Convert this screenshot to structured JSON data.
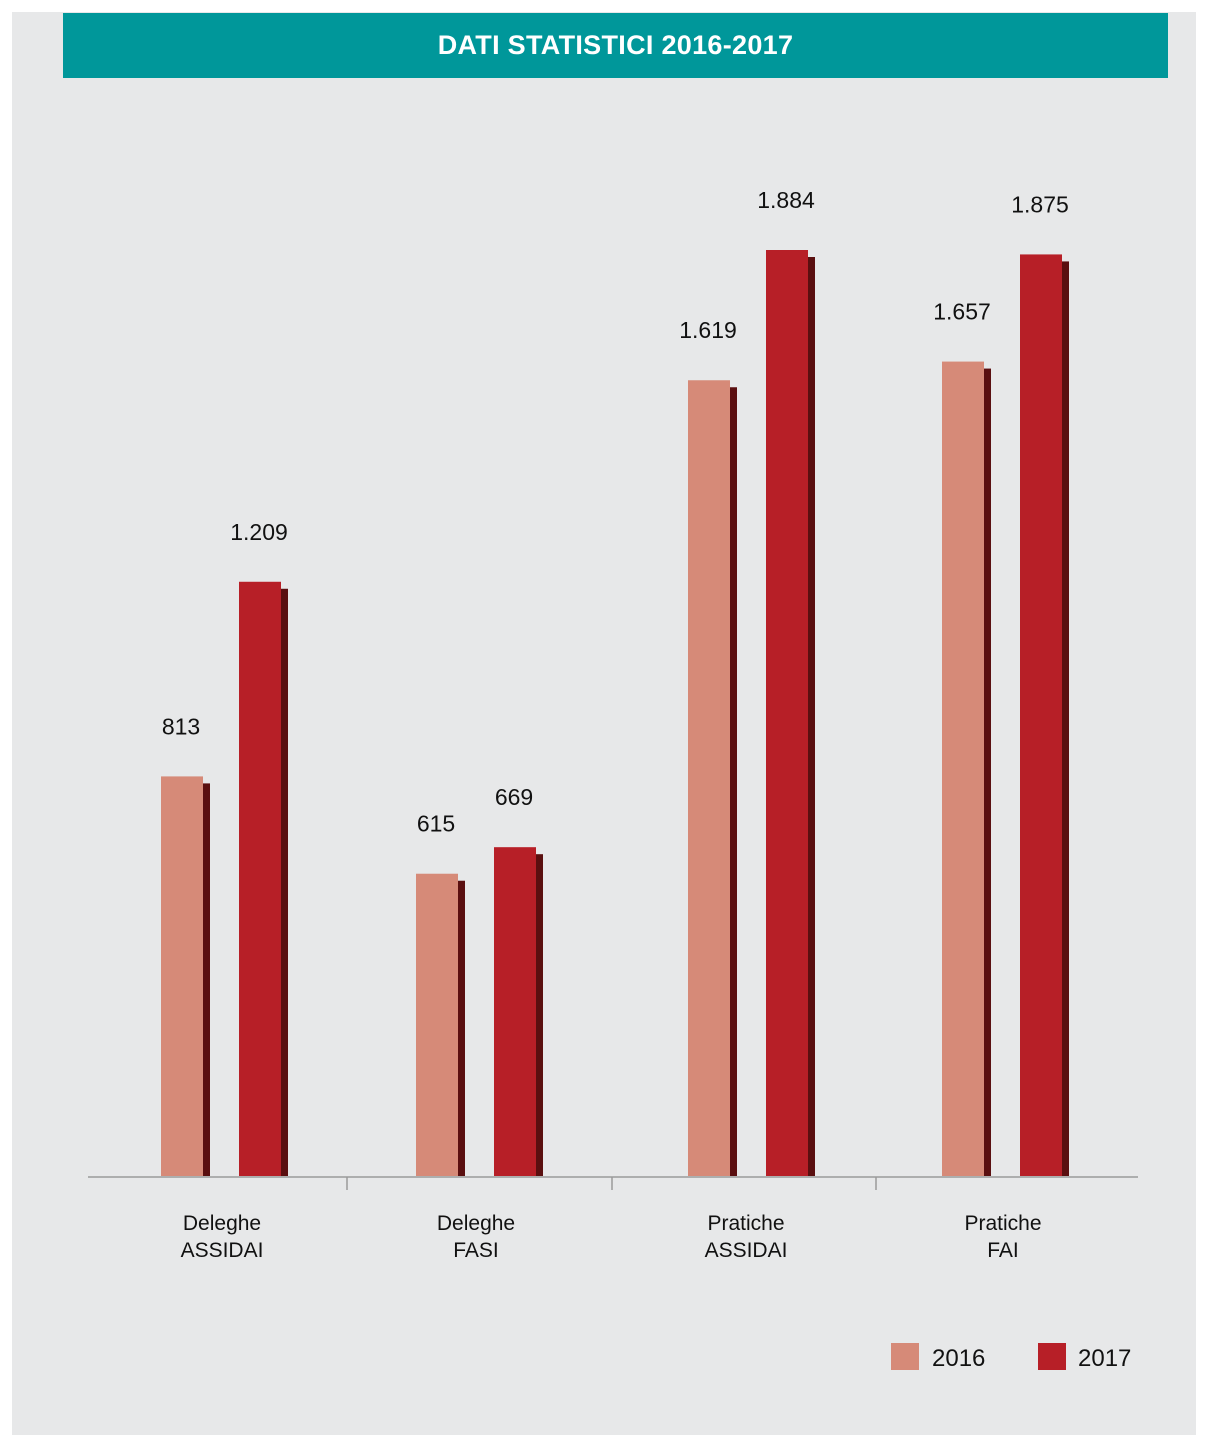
{
  "header": {
    "title": "DATI STATISTICI 2016-2017"
  },
  "colors": {
    "panel": "#e7e8e9",
    "title_bar": "#00979a",
    "series_2016": "#d68a78",
    "series_2017": "#b71f27",
    "shadow": "#5a0f10",
    "axis": "#9a9a9a"
  },
  "chart_data": {
    "type": "bar",
    "categories": [
      [
        "Deleghe",
        "ASSIDAI"
      ],
      [
        "Deleghe",
        "FASI"
      ],
      [
        "Pratiche",
        "ASSIDAI"
      ],
      [
        "Pratiche",
        "FAI"
      ]
    ],
    "series": [
      {
        "name": "2016",
        "values": [
          813,
          615,
          1619,
          1657
        ],
        "labels": [
          "813",
          "615",
          "1.619",
          "1.657"
        ]
      },
      {
        "name": "2017",
        "values": [
          1209,
          669,
          1884,
          1875
        ],
        "labels": [
          "1.209",
          "669",
          "1.884",
          "1.875"
        ]
      }
    ],
    "title": "DATI STATISTICI 2016-2017",
    "xlabel": "",
    "ylabel": "",
    "ylim": [
      0,
      1884
    ],
    "grid": false,
    "legend": "bottom-right"
  }
}
